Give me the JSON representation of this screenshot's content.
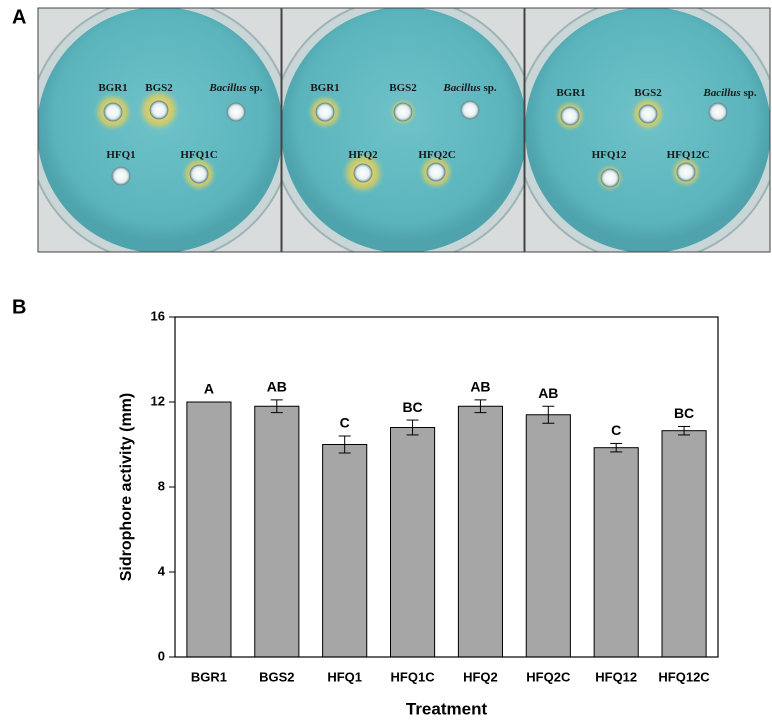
{
  "panels": {
    "a_label": "A",
    "b_label": "B"
  },
  "plates": [
    {
      "wells": [
        {
          "label": "BGR1"
        },
        {
          "label": "BGS2"
        },
        {
          "label": "Bacillus",
          "suffix": "sp."
        },
        {
          "label": "HFQ1"
        },
        {
          "label": "HFQ1C"
        }
      ]
    },
    {
      "wells": [
        {
          "label": "BGR1"
        },
        {
          "label": "BGS2"
        },
        {
          "label": "Bacillus",
          "suffix": "sp."
        },
        {
          "label": "HFQ2"
        },
        {
          "label": "HFQ2C"
        }
      ]
    },
    {
      "wells": [
        {
          "label": "BGR1"
        },
        {
          "label": "BGS2"
        },
        {
          "label": "Bacillus",
          "suffix": "sp."
        },
        {
          "label": "HFQ12"
        },
        {
          "label": "HFQ12C"
        }
      ]
    }
  ],
  "chart_data": {
    "type": "bar",
    "ylabel": "Sidrophore activity (mm)",
    "xlabel": "Treatment",
    "categories": [
      "BGR1",
      "BGS2",
      "HFQ1",
      "HFQ1C",
      "HFQ2",
      "HFQ2C",
      "HFQ12",
      "HFQ12C"
    ],
    "values": [
      12.0,
      11.8,
      10.0,
      10.8,
      11.8,
      11.4,
      9.85,
      10.65
    ],
    "errors": [
      0,
      0.3,
      0.4,
      0.35,
      0.3,
      0.4,
      0.2,
      0.2
    ],
    "annotations": [
      "A",
      "AB",
      "C",
      "BC",
      "AB",
      "AB",
      "C",
      "BC"
    ],
    "color": "#a6a6a6",
    "ylim": [
      0,
      16
    ],
    "yticks": [
      0,
      4,
      8,
      12,
      16
    ],
    "grid": false
  }
}
